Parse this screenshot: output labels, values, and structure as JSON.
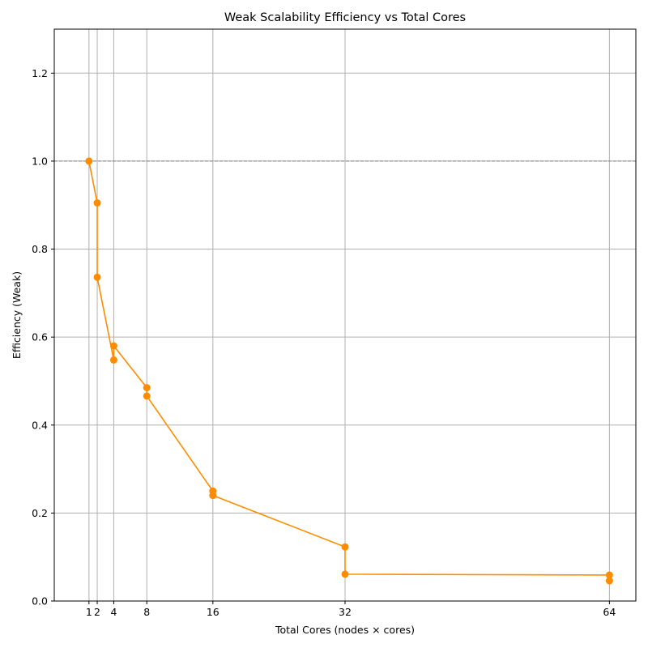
{
  "chart_data": {
    "type": "line",
    "title": "Weak Scalability Efficiency vs Total Cores",
    "xlabel": "Total Cores (nodes × cores)",
    "ylabel": "Efficiency (Weak)",
    "xlim": [
      -3.2,
      67.2
    ],
    "ylim": [
      0.0,
      1.3
    ],
    "xticks": [
      1,
      2,
      4,
      8,
      16,
      32,
      64
    ],
    "yticks": [
      0.0,
      0.2,
      0.4,
      0.6,
      0.8,
      1.0,
      1.2
    ],
    "ytick_labels": [
      "0.0",
      "0.2",
      "0.4",
      "0.6",
      "0.8",
      "1.0",
      "1.2"
    ],
    "grid": true,
    "reference_line": {
      "y": 1.0,
      "style": "dashed",
      "color": "#808080"
    },
    "series": [
      {
        "color": "#ff8c00",
        "x": [
          1,
          2,
          2,
          4,
          4,
          8,
          8,
          16,
          16,
          32,
          32,
          64,
          64
        ],
        "y": [
          1.0,
          0.905,
          0.736,
          0.548,
          0.58,
          0.485,
          0.466,
          0.25,
          0.24,
          0.123,
          0.061,
          0.059,
          0.046
        ]
      }
    ]
  }
}
